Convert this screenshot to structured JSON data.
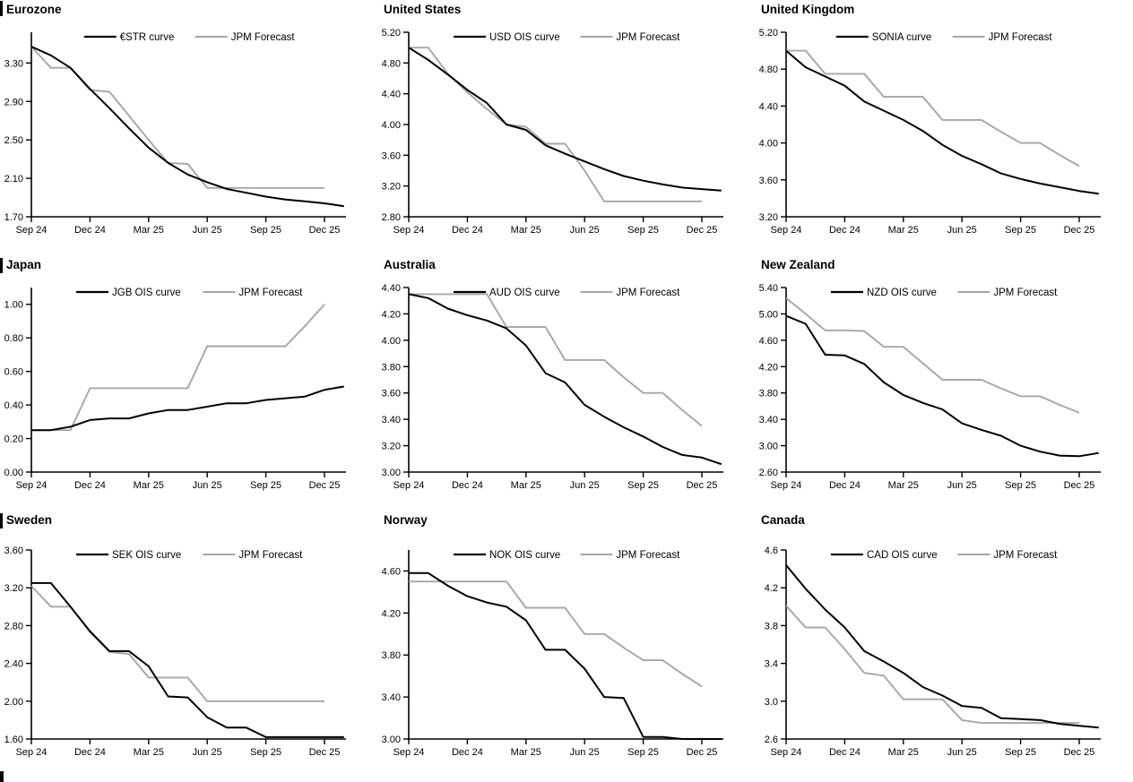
{
  "page": {
    "background": "#ffffff",
    "series_black_color": "#000000",
    "series_gray_color": "#a6a6a6",
    "x_tick_positions": [
      0,
      3,
      6,
      9,
      12,
      15
    ],
    "x_tick_labels": [
      "Sep 24",
      "Dec 24",
      "Mar 25",
      "Jun 25",
      "Sep 25",
      "Dec 25"
    ],
    "x_unit": "months from Sep 24"
  },
  "chart_data": [
    {
      "type": "line",
      "title": "Eurozone",
      "section_bar": true,
      "x_tick_labels": [
        "Sep 24",
        "Dec 24",
        "Mar 25",
        "Jun 25",
        "Sep 25",
        "Dec 25"
      ],
      "y_tick_values": [
        1.7,
        2.1,
        2.5,
        2.9,
        3.3
      ],
      "y_tick_labels": [
        "1.70",
        "2.10",
        "2.50",
        "2.90",
        "3.30"
      ],
      "ylim": [
        1.7,
        3.62
      ],
      "legend_position": "top-center",
      "series": [
        {
          "name": "JPM Forecast",
          "role": "forecast",
          "color": "gray",
          "values": [
            3.47,
            3.25,
            3.25,
            3.02,
            3.0,
            2.75,
            2.5,
            2.26,
            2.25,
            2.0,
            2.0,
            2.0,
            2.0,
            2.0,
            2.0,
            2.0
          ]
        },
        {
          "name": "€STR curve",
          "role": "market",
          "color": "black",
          "values": [
            3.47,
            3.38,
            3.25,
            3.03,
            2.83,
            2.62,
            2.42,
            2.26,
            2.14,
            2.06,
            1.99,
            1.95,
            1.91,
            1.88,
            1.86,
            1.84,
            1.81
          ]
        }
      ]
    },
    {
      "type": "line",
      "title": "United States",
      "section_bar": false,
      "x_tick_labels": [
        "Sep 24",
        "Dec 24",
        "Mar 25",
        "Jun 25",
        "Sep 25",
        "Dec 25"
      ],
      "y_tick_values": [
        2.8,
        3.2,
        3.6,
        4.0,
        4.4,
        4.8,
        5.2
      ],
      "y_tick_labels": [
        "2.80",
        "3.20",
        "3.60",
        "4.00",
        "4.40",
        "4.80",
        "5.20"
      ],
      "ylim": [
        2.8,
        5.2
      ],
      "legend_position": "top-center",
      "series": [
        {
          "name": "JPM Forecast",
          "role": "forecast",
          "color": "gray",
          "values": [
            5.0,
            5.0,
            4.66,
            4.42,
            4.2,
            4.0,
            3.97,
            3.75,
            3.75,
            3.4,
            3.0,
            3.0,
            3.0,
            3.0,
            3.0,
            3.0
          ]
        },
        {
          "name": "USD OIS curve",
          "role": "market",
          "color": "black",
          "values": [
            5.0,
            4.84,
            4.65,
            4.45,
            4.28,
            4.0,
            3.93,
            3.73,
            3.62,
            3.52,
            3.42,
            3.33,
            3.27,
            3.22,
            3.18,
            3.16,
            3.14
          ]
        }
      ]
    },
    {
      "type": "line",
      "title": "United Kingdom",
      "section_bar": false,
      "x_tick_labels": [
        "Sep 24",
        "Dec 24",
        "Mar 25",
        "Jun 25",
        "Sep 25",
        "Dec 25"
      ],
      "y_tick_values": [
        3.2,
        3.6,
        4.0,
        4.4,
        4.8,
        5.2
      ],
      "y_tick_labels": [
        "3.20",
        "3.60",
        "4.00",
        "4.40",
        "4.80",
        "5.20"
      ],
      "ylim": [
        3.2,
        5.2
      ],
      "legend_position": "top-center",
      "series": [
        {
          "name": "JPM Forecast",
          "role": "forecast",
          "color": "gray",
          "values": [
            5.0,
            5.0,
            4.75,
            4.75,
            4.75,
            4.5,
            4.5,
            4.5,
            4.25,
            4.25,
            4.25,
            4.12,
            4.0,
            4.0,
            3.87,
            3.75
          ]
        },
        {
          "name": "SONIA curve",
          "role": "market",
          "color": "black",
          "values": [
            5.0,
            4.82,
            4.72,
            4.62,
            4.45,
            4.35,
            4.25,
            4.13,
            3.98,
            3.86,
            3.77,
            3.67,
            3.61,
            3.56,
            3.52,
            3.48,
            3.45
          ]
        }
      ]
    },
    {
      "type": "line",
      "title": "Japan",
      "section_bar": true,
      "x_tick_labels": [
        "Sep 24",
        "Dec 24",
        "Mar 25",
        "Jun 25",
        "Sep 25",
        "Dec 25"
      ],
      "y_tick_values": [
        0.0,
        0.2,
        0.4,
        0.6,
        0.8,
        1.0
      ],
      "y_tick_labels": [
        "0.00",
        "0.20",
        "0.40",
        "0.60",
        "0.80",
        "1.00"
      ],
      "ylim": [
        0.0,
        1.1
      ],
      "legend_position": "top-center",
      "series": [
        {
          "name": "JPM Forecast",
          "role": "forecast",
          "color": "gray",
          "values": [
            0.25,
            0.25,
            0.25,
            0.5,
            0.5,
            0.5,
            0.5,
            0.5,
            0.5,
            0.75,
            0.75,
            0.75,
            0.75,
            0.75,
            0.87,
            1.0
          ]
        },
        {
          "name": "JGB OIS curve",
          "role": "market",
          "color": "black",
          "values": [
            0.25,
            0.25,
            0.27,
            0.31,
            0.32,
            0.32,
            0.35,
            0.37,
            0.37,
            0.39,
            0.41,
            0.41,
            0.43,
            0.44,
            0.45,
            0.49,
            0.51
          ]
        }
      ]
    },
    {
      "type": "line",
      "title": "Australia",
      "section_bar": false,
      "x_tick_labels": [
        "Sep 24",
        "Dec 24",
        "Mar 25",
        "Jun 25",
        "Sep 25",
        "Dec 25"
      ],
      "y_tick_values": [
        3.0,
        3.2,
        3.4,
        3.6,
        3.8,
        4.0,
        4.2,
        4.4
      ],
      "y_tick_labels": [
        "3.00",
        "3.20",
        "3.40",
        "3.60",
        "3.80",
        "4.00",
        "4.20",
        "4.40"
      ],
      "ylim": [
        3.0,
        4.4
      ],
      "legend_position": "top-center",
      "series": [
        {
          "name": "JPM Forecast",
          "role": "forecast",
          "color": "gray",
          "values": [
            4.35,
            4.35,
            4.35,
            4.35,
            4.35,
            4.1,
            4.1,
            4.1,
            3.85,
            3.85,
            3.85,
            3.72,
            3.6,
            3.6,
            3.47,
            3.35
          ]
        },
        {
          "name": "AUD OIS curve",
          "role": "market",
          "color": "black",
          "values": [
            4.35,
            4.32,
            4.24,
            4.19,
            4.15,
            4.09,
            3.96,
            3.75,
            3.68,
            3.51,
            3.42,
            3.34,
            3.27,
            3.19,
            3.13,
            3.11,
            3.06
          ]
        }
      ]
    },
    {
      "type": "line",
      "title": "New Zealand",
      "section_bar": false,
      "x_tick_labels": [
        "Sep 24",
        "Dec 24",
        "Mar 25",
        "Jun 25",
        "Sep 25",
        "Dec 25"
      ],
      "y_tick_values": [
        2.6,
        3.0,
        3.4,
        3.8,
        4.2,
        4.6,
        5.0,
        5.4
      ],
      "y_tick_labels": [
        "2.60",
        "3.00",
        "3.40",
        "3.80",
        "4.20",
        "4.60",
        "5.00",
        "5.40"
      ],
      "ylim": [
        2.6,
        5.4
      ],
      "legend_position": "top-center",
      "series": [
        {
          "name": "JPM Forecast",
          "role": "forecast",
          "color": "gray",
          "values": [
            5.24,
            5.0,
            4.75,
            4.75,
            4.74,
            4.5,
            4.5,
            4.25,
            4.0,
            4.0,
            4.0,
            3.87,
            3.75,
            3.75,
            3.62,
            3.5
          ]
        },
        {
          "name": "NZD OIS curve",
          "role": "market",
          "color": "black",
          "values": [
            4.97,
            4.85,
            4.38,
            4.37,
            4.24,
            3.96,
            3.77,
            3.65,
            3.55,
            3.34,
            3.24,
            3.15,
            3.0,
            2.91,
            2.85,
            2.84,
            2.89
          ]
        }
      ]
    },
    {
      "type": "line",
      "title": "Sweden",
      "section_bar": true,
      "x_tick_labels": [
        "Sep 24",
        "Dec 24",
        "Mar 25",
        "Jun 25",
        "Sep 25",
        "Dec 25"
      ],
      "y_tick_values": [
        1.6,
        2.0,
        2.4,
        2.8,
        3.2,
        3.6
      ],
      "y_tick_labels": [
        "1.60",
        "2.00",
        "2.40",
        "2.80",
        "3.20",
        "3.60"
      ],
      "ylim": [
        1.6,
        3.6
      ],
      "legend_position": "top-center",
      "series": [
        {
          "name": "JPM Forecast",
          "role": "forecast",
          "color": "gray",
          "values": [
            3.22,
            3.0,
            3.0,
            2.73,
            2.52,
            2.5,
            2.25,
            2.25,
            2.25,
            2.0,
            2.0,
            2.0,
            2.0,
            2.0,
            2.0,
            2.0
          ]
        },
        {
          "name": "SEK OIS curve",
          "role": "market",
          "color": "black",
          "values": [
            3.25,
            3.25,
            3.0,
            2.74,
            2.53,
            2.53,
            2.37,
            2.05,
            2.04,
            1.83,
            1.72,
            1.72,
            1.62,
            1.62,
            1.62,
            1.62,
            1.62
          ]
        }
      ]
    },
    {
      "type": "line",
      "title": "Norway",
      "section_bar": false,
      "x_tick_labels": [
        "Sep 24",
        "Dec 24",
        "Mar 25",
        "Jun 25",
        "Sep 25",
        "Dec 25"
      ],
      "y_tick_values": [
        3.0,
        3.4,
        3.8,
        4.2,
        4.6
      ],
      "y_tick_labels": [
        "3.00",
        "3.40",
        "3.80",
        "4.20",
        "4.60"
      ],
      "ylim": [
        3.0,
        4.8
      ],
      "legend_position": "top-center",
      "series": [
        {
          "name": "JPM Forecast",
          "role": "forecast",
          "color": "gray",
          "values": [
            4.5,
            4.5,
            4.5,
            4.5,
            4.5,
            4.5,
            4.25,
            4.25,
            4.25,
            4.0,
            4.0,
            3.87,
            3.75,
            3.75,
            3.62,
            3.5
          ]
        },
        {
          "name": "NOK OIS curve",
          "role": "market",
          "color": "black",
          "values": [
            4.58,
            4.58,
            4.46,
            4.36,
            4.3,
            4.26,
            4.13,
            3.85,
            3.85,
            3.67,
            3.4,
            3.39,
            3.02,
            3.02,
            3.0,
            3.0,
            3.0
          ]
        }
      ]
    },
    {
      "type": "line",
      "title": "Canada",
      "section_bar": false,
      "x_tick_labels": [
        "Sep 24",
        "Dec 24",
        "Mar 25",
        "Jun 25",
        "Sep 25",
        "Dec 25"
      ],
      "y_tick_values": [
        2.6,
        3.0,
        3.4,
        3.8,
        4.2,
        4.6
      ],
      "y_tick_labels": [
        "2.6",
        "3.0",
        "3.4",
        "3.8",
        "4.2",
        "4.6"
      ],
      "ylim": [
        2.6,
        4.6
      ],
      "legend_position": "top-center",
      "series": [
        {
          "name": "JPM Forecast",
          "role": "forecast",
          "color": "gray",
          "values": [
            4.01,
            3.78,
            3.78,
            3.55,
            3.3,
            3.27,
            3.02,
            3.02,
            3.02,
            2.8,
            2.77,
            2.77,
            2.77,
            2.77,
            2.77,
            2.77
          ]
        },
        {
          "name": "CAD OIS curve",
          "role": "market",
          "color": "black",
          "values": [
            4.44,
            4.19,
            3.97,
            3.78,
            3.53,
            3.42,
            3.3,
            3.15,
            3.06,
            2.95,
            2.93,
            2.82,
            2.81,
            2.8,
            2.76,
            2.74,
            2.72
          ]
        }
      ]
    }
  ]
}
